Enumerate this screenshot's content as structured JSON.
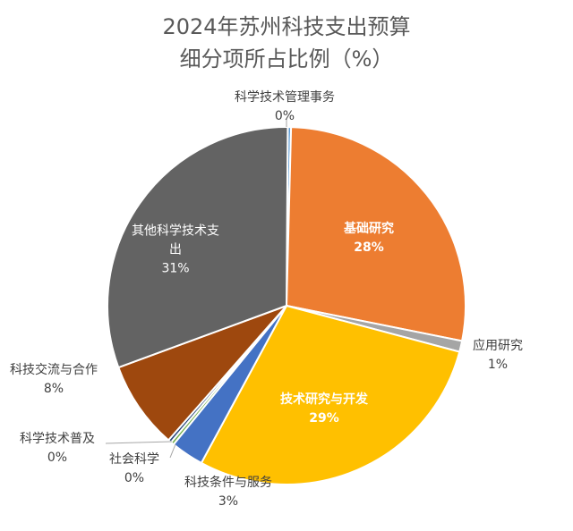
{
  "chart_data": {
    "type": "pie",
    "title": "2024年苏州科技支出预算细分项所占比例（%）",
    "categories": [
      "科学技术管理事务",
      "基础研究",
      "应用研究",
      "技术研究与开发",
      "科技条件与服务",
      "社会科学",
      "科学技术普及",
      "科技交流与合作",
      "其他科学技术支出"
    ],
    "values": [
      0.3,
      28,
      1,
      29,
      3,
      0.3,
      0.3,
      8,
      31
    ],
    "value_labels": [
      "0%",
      "28%",
      "1%",
      "29%",
      "3%",
      "0%",
      "0%",
      "8%",
      "31%"
    ],
    "colors": [
      "#5b9bd5",
      "#ed7d31",
      "#a5a5a5",
      "#ffc000",
      "#4472c4",
      "#70ad47",
      "#264478",
      "#9e480e",
      "#636363"
    ]
  }
}
